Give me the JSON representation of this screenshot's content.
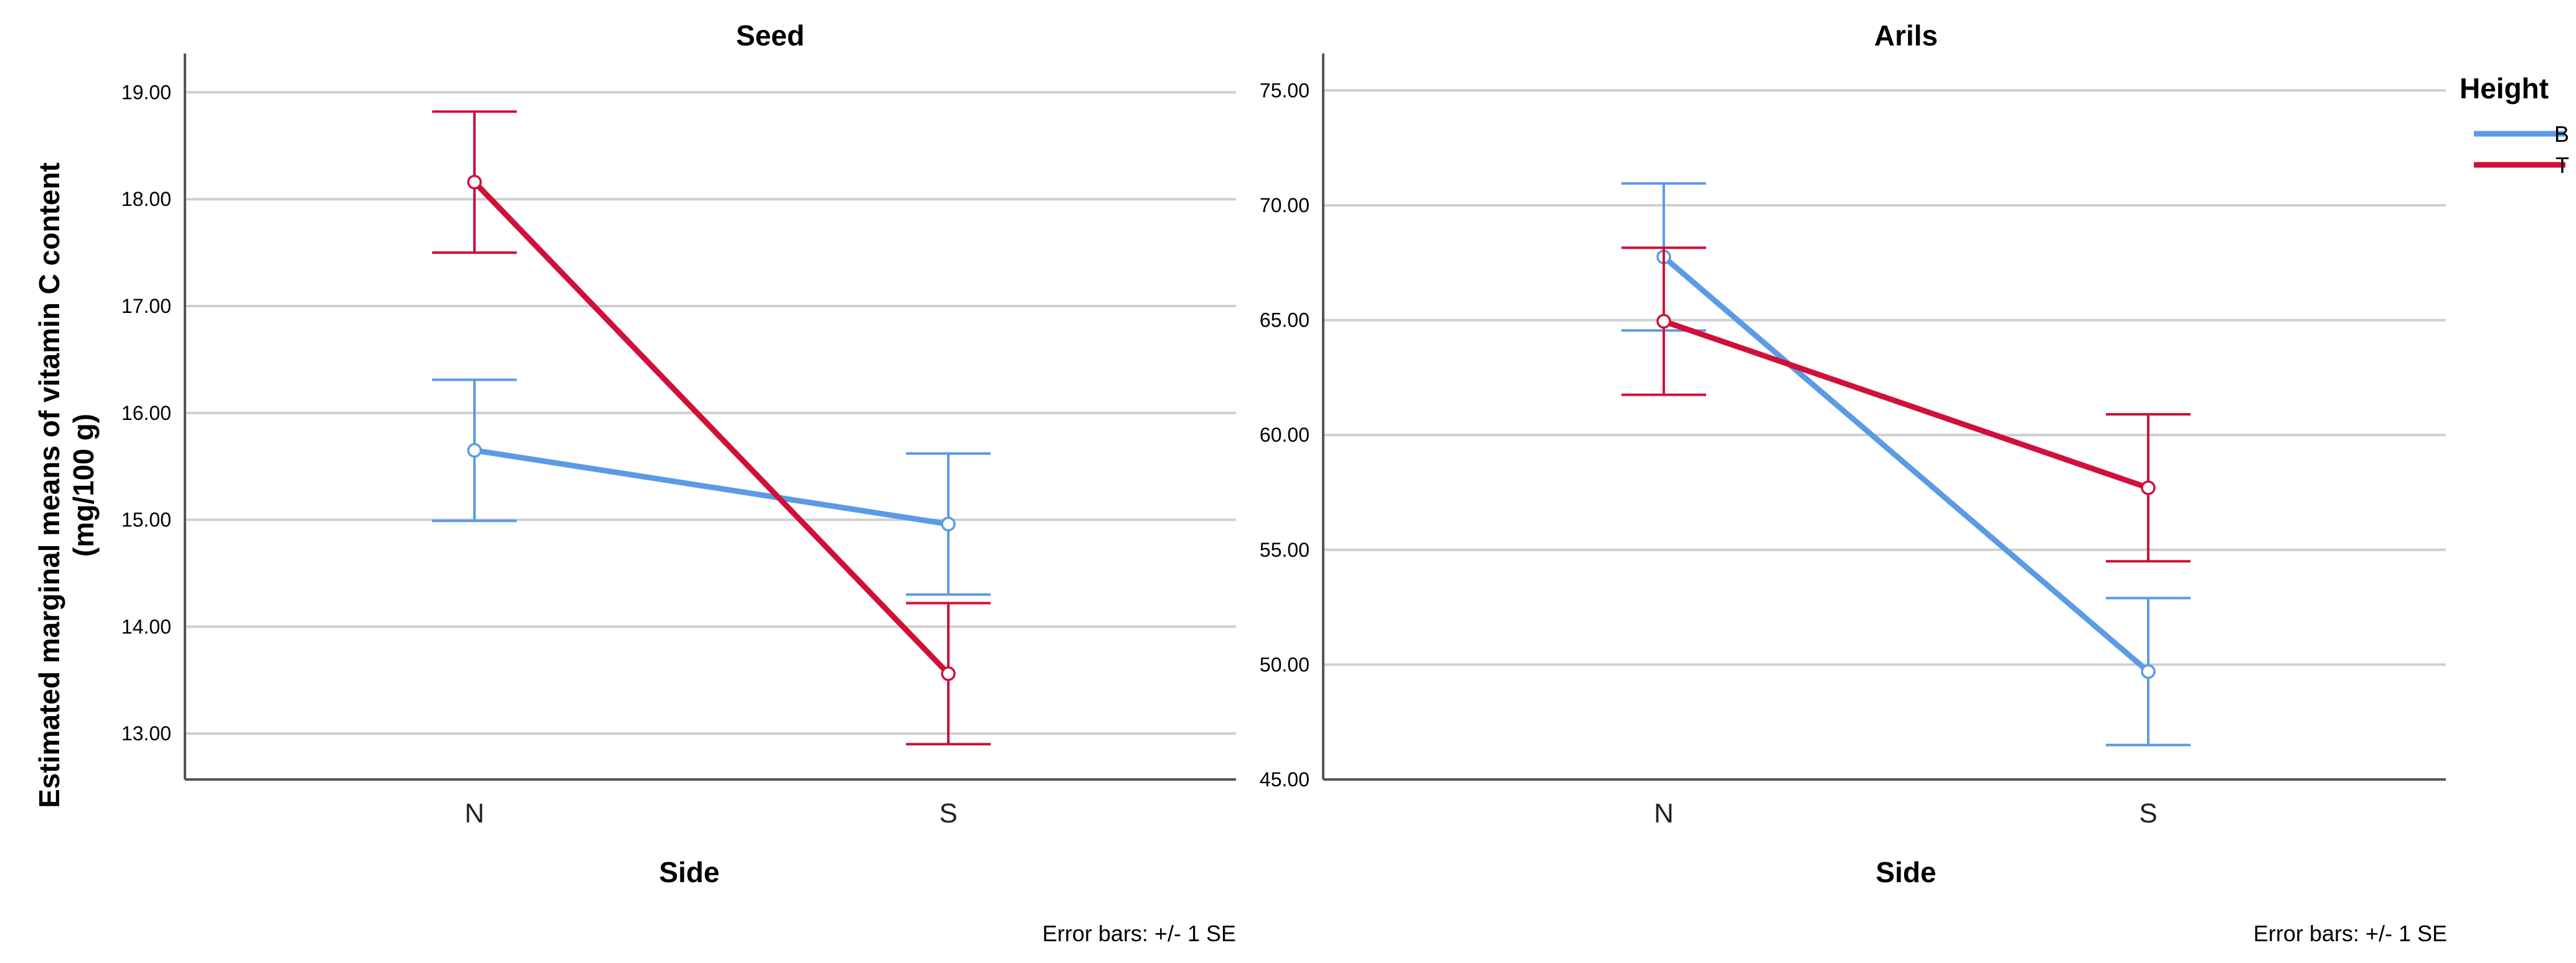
{
  "chart_data": {
    "type": "line",
    "ylabel": "Estimated marginal means of vitamin C content",
    "ylabel_line2": "(mg/100 g)",
    "xlabel": "Side",
    "categories": [
      "N",
      "S"
    ],
    "legend": {
      "title": "Height",
      "placement": "right",
      "entries": [
        "B",
        "T"
      ]
    },
    "footnote": "Error bars: +/- 1 SE",
    "colors": {
      "B": "#5b9be6",
      "T": "#d0103a",
      "grid": "#cfcfcf",
      "axis": "#555555"
    },
    "panels": [
      {
        "title": "Seed",
        "ylim": [
          12.57,
          19.34
        ],
        "yticks": [
          13.0,
          14.0,
          15.0,
          16.0,
          17.0,
          18.0,
          19.0
        ],
        "ytick_labels": [
          "13.00",
          "14.00",
          "15.00",
          "16.00",
          "17.00",
          "18.00",
          "19.00"
        ],
        "grid": true,
        "series": [
          {
            "name": "B",
            "values": [
              15.65,
              14.96
            ],
            "se": [
              0.66,
              0.66
            ]
          },
          {
            "name": "T",
            "values": [
              18.16,
              13.56
            ],
            "se": [
              0.66,
              0.66
            ]
          }
        ]
      },
      {
        "title": "Arils",
        "ylim": [
          45.0,
          76.5
        ],
        "yticks": [
          45.0,
          50.0,
          55.0,
          60.0,
          65.0,
          70.0,
          75.0
        ],
        "ytick_labels": [
          "45.00",
          "50.00",
          "55.00",
          "60.00",
          "65.00",
          "70.00",
          "75.00"
        ],
        "grid": true,
        "series": [
          {
            "name": "B",
            "values": [
              67.75,
              49.7
            ],
            "se": [
              3.2,
              3.2
            ]
          },
          {
            "name": "T",
            "values": [
              64.95,
              57.7
            ],
            "se": [
              3.2,
              3.2
            ]
          }
        ]
      }
    ]
  }
}
